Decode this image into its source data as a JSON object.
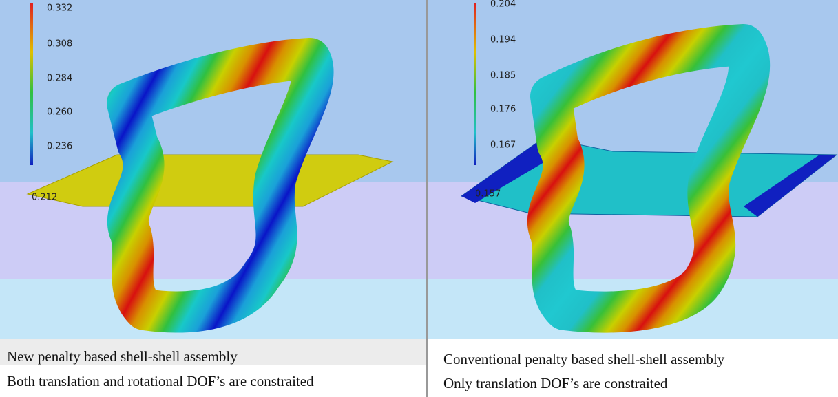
{
  "panels": [
    {
      "legend": [
        "0.332",
        "0.308",
        "0.284",
        "0.260",
        "0.236",
        "0.212"
      ],
      "caption": [
        "New penalty based shell-shell assembly",
        "Both translation and rotational  DOF’s are constraited"
      ]
    },
    {
      "legend": [
        "0.204",
        "0.194",
        "0.185",
        "0.176",
        "0.167",
        "0.157"
      ],
      "caption": [
        "Conventional penalty based shell-shell assembly",
        "Only translation DOF’s are constraited"
      ]
    }
  ]
}
